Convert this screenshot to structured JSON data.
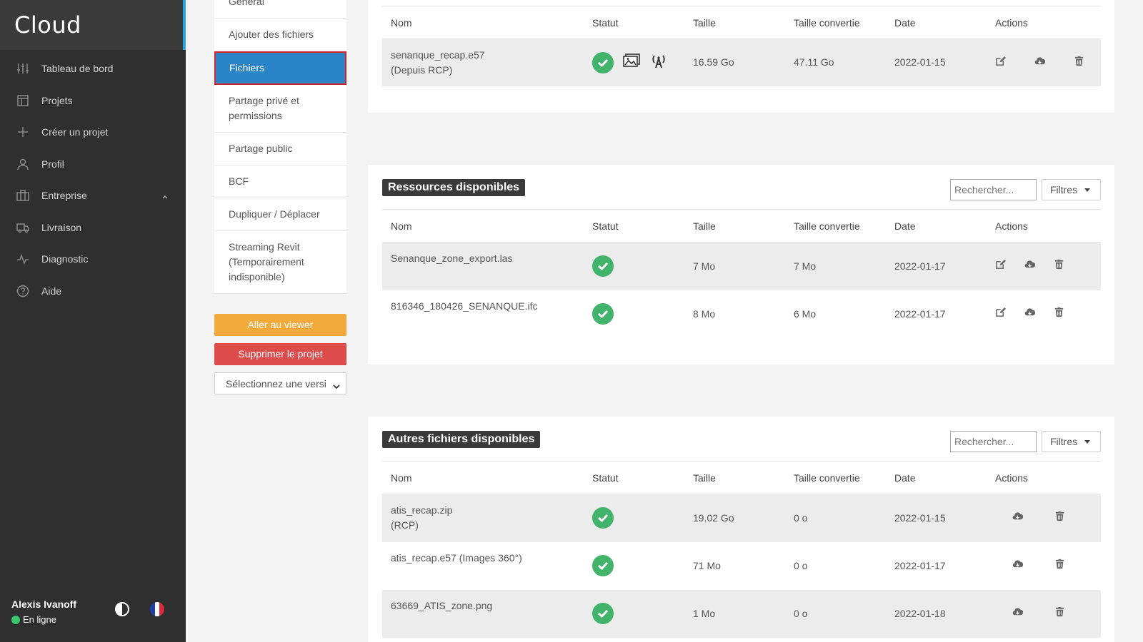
{
  "app": {
    "title": "Cloud"
  },
  "colors": {
    "accent": "#2aa7df",
    "active": "#2b83c8",
    "success": "#41b36b",
    "warning": "#f2aa3c",
    "danger": "#dd4b4b"
  },
  "sidebar": {
    "items": [
      {
        "label": "Tableau de bord",
        "icon": "sliders-icon"
      },
      {
        "label": "Projets",
        "icon": "layout-icon"
      },
      {
        "label": "Créer un projet",
        "icon": "plus-icon"
      },
      {
        "label": "Profil",
        "icon": "user-icon"
      },
      {
        "label": "Entreprise",
        "icon": "building-icon"
      },
      {
        "label": "Livraison",
        "icon": "truck-icon"
      },
      {
        "label": "Diagnostic",
        "icon": "activity-icon"
      },
      {
        "label": "Aide",
        "icon": "help-icon"
      }
    ],
    "user": {
      "name": "Alexis Ivanoff",
      "status": "En ligne"
    }
  },
  "submenu": {
    "items": [
      "Général",
      "Ajouter des fichiers",
      "Fichiers",
      "Partage privé et permissions",
      "Partage public",
      "BCF",
      "Dupliquer / Déplacer",
      "Streaming Revit (Temporairement indisponible)"
    ],
    "viewer_button": "Aller au viewer",
    "delete_button": "Supprimer le projet",
    "version_select": "Sélectionnez une versi"
  },
  "headers": {
    "name": "Nom",
    "status": "Statut",
    "size": "Taille",
    "converted": "Taille convertie",
    "date": "Date",
    "actions": "Actions"
  },
  "search_placeholder": "Rechercher...",
  "filters_label": "Filtres",
  "panel1": {
    "rows": [
      {
        "name": "senanque_recap.e57",
        "sub": "(Depuis RCP)",
        "size": "16.59 Go",
        "converted": "47.11 Go",
        "date": "2022-01-15"
      }
    ]
  },
  "panel2": {
    "title": "Ressources disponibles",
    "rows": [
      {
        "name": "Senanque_zone_export.las",
        "size": "7 Mo",
        "converted": "7 Mo",
        "date": "2022-01-17"
      },
      {
        "name": "816346_180426_SENANQUE.ifc",
        "size": "8 Mo",
        "converted": "6 Mo",
        "date": "2022-01-17"
      }
    ]
  },
  "panel3": {
    "title": "Autres fichiers disponibles",
    "rows": [
      {
        "name": "atis_recap.zip",
        "sub": "(RCP)",
        "size": "19.02 Go",
        "converted": "0 o",
        "date": "2022-01-15"
      },
      {
        "name": "atis_recap.e57 (Images 360°)",
        "size": "71 Mo",
        "converted": "0 o",
        "date": "2022-01-17"
      },
      {
        "name": "63669_ATIS_zone.png",
        "size": "1 Mo",
        "converted": "0 o",
        "date": "2022-01-18"
      }
    ]
  }
}
